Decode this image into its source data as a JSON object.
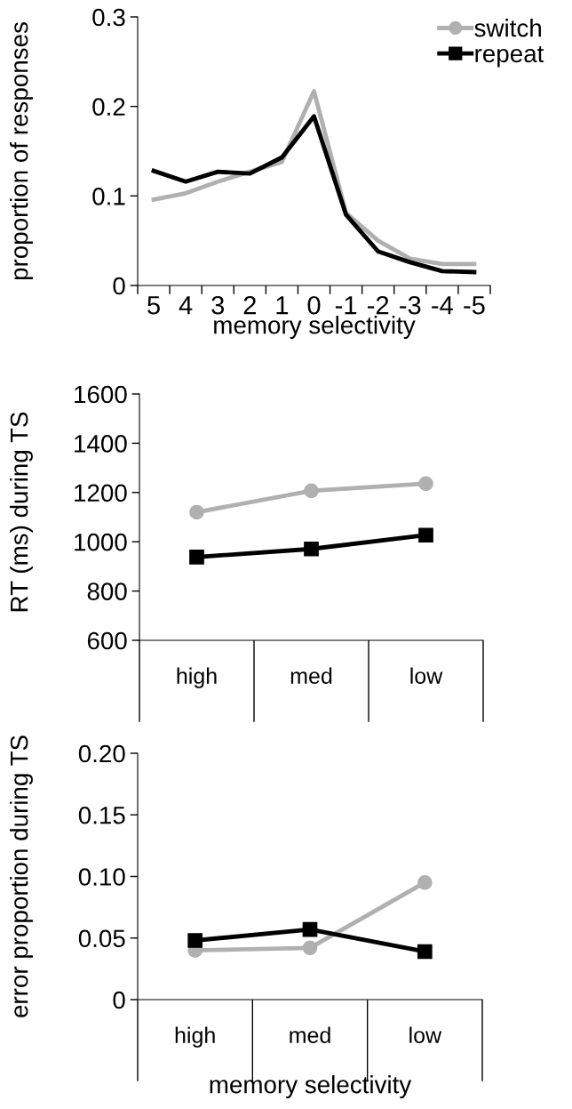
{
  "chart_data": [
    {
      "type": "line",
      "xlabel": "memory selectivity",
      "ylabel": "proportion of responses",
      "categories": [
        "5",
        "4",
        "3",
        "2",
        "1",
        "0",
        "-1",
        "-2",
        "-3",
        "-4",
        "-5"
      ],
      "ylim": [
        0,
        0.3
      ],
      "yticks": [
        0,
        0.1,
        0.2,
        0.3
      ],
      "legend": "top right",
      "marker": "none",
      "series": [
        {
          "name": "switch",
          "color": "#b0b0b0",
          "values": [
            0.096,
            0.103,
            0.116,
            0.127,
            0.138,
            0.217,
            0.081,
            0.05,
            0.03,
            0.024,
            0.024
          ]
        },
        {
          "name": "repeat",
          "color": "#000000",
          "values": [
            0.128,
            0.116,
            0.127,
            0.125,
            0.143,
            0.189,
            0.079,
            0.038,
            0.026,
            0.016,
            0.015
          ]
        }
      ]
    },
    {
      "type": "line",
      "ylabel": "RT (ms) during TS",
      "categories": [
        "high",
        "med",
        "low"
      ],
      "ylim": [
        600,
        1600
      ],
      "yticks": [
        600,
        800,
        1000,
        1200,
        1400,
        1600
      ],
      "series": [
        {
          "color": "#b0b0b0",
          "marker": "circle",
          "values": [
            1120,
            1207,
            1236
          ]
        },
        {
          "color": "#000000",
          "marker": "square",
          "values": [
            938,
            971,
            1027
          ]
        }
      ]
    },
    {
      "type": "line",
      "xlabel": "memory selectivity",
      "ylabel": "error proportion during TS",
      "categories": [
        "high",
        "med",
        "low"
      ],
      "ylim": [
        0,
        0.2
      ],
      "yticks": [
        0,
        0.05,
        {
          "value": 0.1,
          "label": "0.10"
        },
        0.15,
        {
          "value": 0.2,
          "label": "0.20"
        }
      ],
      "series": [
        {
          "color": "#b0b0b0",
          "marker": "circle",
          "values": [
            0.04,
            0.042,
            0.095
          ]
        },
        {
          "color": "#000000",
          "marker": "square",
          "values": [
            0.048,
            0.057,
            0.039
          ]
        }
      ]
    }
  ]
}
